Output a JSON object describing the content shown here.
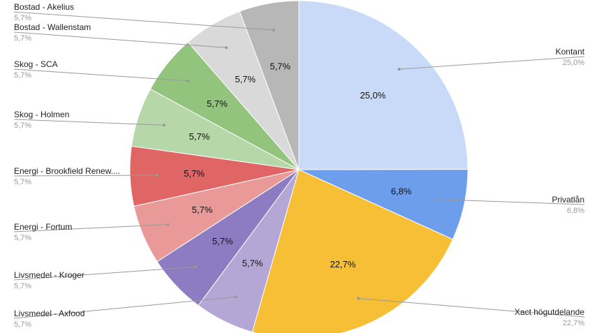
{
  "chart_data": {
    "type": "pie",
    "title": "",
    "slices": [
      {
        "label": "Kontant",
        "value": 25.0,
        "text": "25,0%",
        "color": "#c9daf8"
      },
      {
        "label": "Privatlån",
        "value": 6.8,
        "text": "6,8%",
        "color": "#6d9eeb"
      },
      {
        "label": "Xact högutdelande",
        "value": 22.7,
        "text": "22,7%",
        "color": "#f6bf36"
      },
      {
        "label": "Livsmedel - Axfood",
        "value": 5.7,
        "text": "5,7%",
        "color": "#b4a7d6"
      },
      {
        "label": "Livsmedel - Kroger",
        "value": 5.7,
        "text": "5,7%",
        "color": "#8e7cc3"
      },
      {
        "label": "Energi - Fortum",
        "value": 5.7,
        "text": "5,7%",
        "color": "#ea9999"
      },
      {
        "label": "Energi - Brookfield Renew....",
        "value": 5.7,
        "text": "5,7%",
        "color": "#e06666"
      },
      {
        "label": "Skog - Holmen",
        "value": 5.7,
        "text": "5,7%",
        "color": "#b6d7a8"
      },
      {
        "label": "Skog - SCA",
        "value": 5.7,
        "text": "5,7%",
        "color": "#93c47d"
      },
      {
        "label": "Bostad - Wallenstam",
        "value": 5.7,
        "text": "5,7%",
        "color": "#d9d9d9"
      },
      {
        "label": "Bostad - Akelius",
        "value": 5.7,
        "text": "5,7%",
        "color": "#b7b7b7"
      }
    ],
    "legend": "callouts-left-right"
  }
}
